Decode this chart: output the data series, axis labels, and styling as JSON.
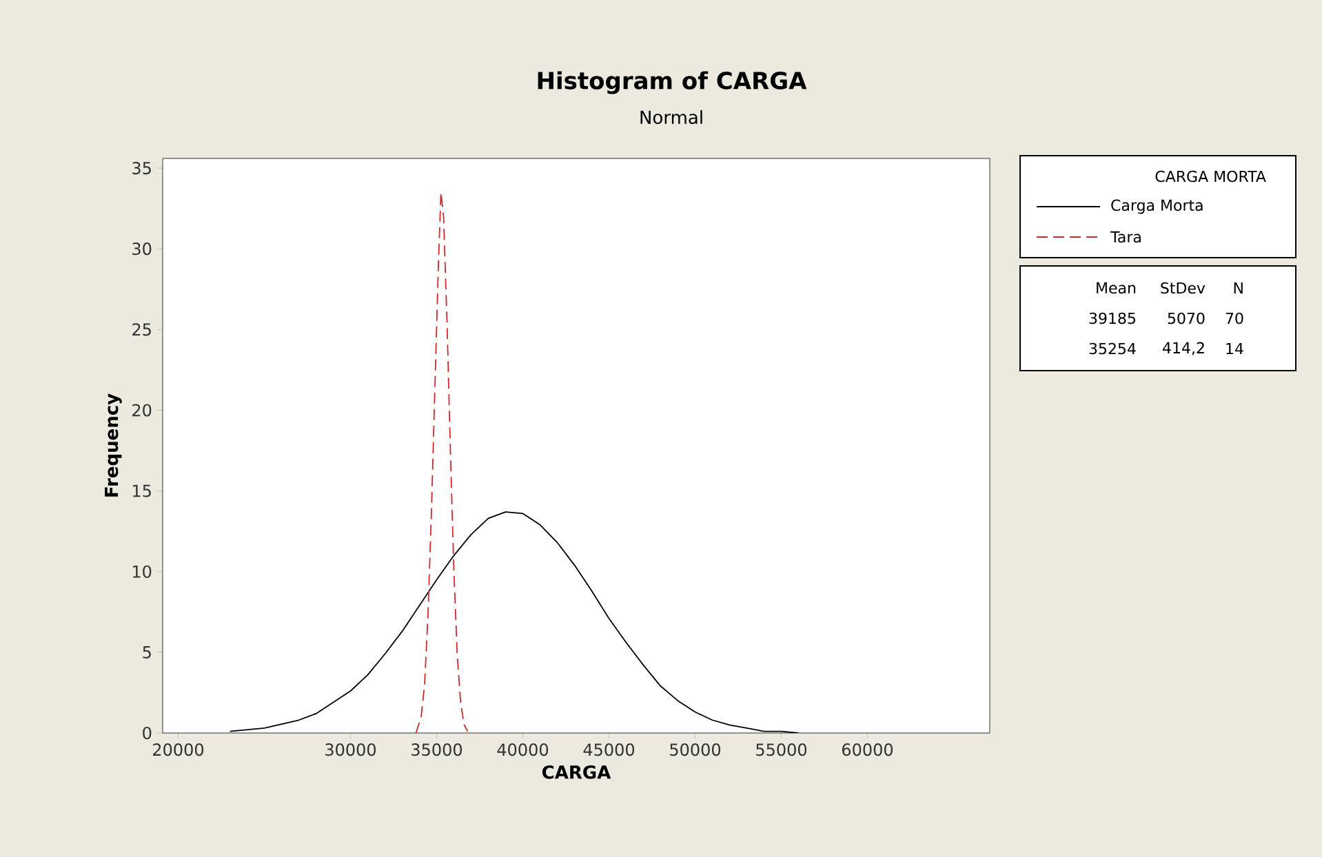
{
  "chart_data": {
    "type": "line",
    "title": "Histogram of CARGA",
    "subtitle": "Normal",
    "xlabel": "CARGA",
    "ylabel": "Frequency",
    "legend_title": "CARGA MORTA",
    "xlim": [
      19100,
      67100
    ],
    "ylim": [
      0,
      35.6
    ],
    "xticks": [
      20000,
      30000,
      35000,
      40000,
      45000,
      50000,
      55000,
      60000
    ],
    "yticks": [
      0,
      5,
      10,
      15,
      20,
      25,
      30,
      35
    ],
    "legend": "right",
    "marker": "none",
    "series": [
      {
        "name": "Carga Morta",
        "color": "#000000",
        "line_style": "solid",
        "x": [
          23000,
          25000,
          27000,
          28000,
          30000,
          31000,
          32000,
          33000,
          34000,
          35000,
          36000,
          37000,
          38000,
          39000,
          40000,
          41000,
          42000,
          43000,
          44000,
          45000,
          46000,
          47000,
          48000,
          49000,
          50000,
          51000,
          52000,
          53000,
          54000,
          55000,
          56000
        ],
        "values": [
          0.1,
          0.3,
          0.8,
          1.2,
          2.6,
          3.6,
          4.9,
          6.3,
          7.9,
          9.5,
          11.0,
          12.3,
          13.3,
          13.7,
          13.6,
          12.9,
          11.8,
          10.4,
          8.8,
          7.1,
          5.6,
          4.2,
          2.9,
          2.0,
          1.3,
          0.8,
          0.5,
          0.3,
          0.1,
          0.1,
          0.0
        ]
      },
      {
        "name": "Tara",
        "color": "#d62728",
        "line_style": "dashed",
        "x": [
          33800,
          34100,
          34300,
          34500,
          34700,
          34900,
          35100,
          35250,
          35400,
          35600,
          35800,
          36000,
          36200,
          36400,
          36600,
          36800
        ],
        "values": [
          0,
          1.0,
          3.0,
          7.4,
          13.8,
          21.5,
          29.0,
          33.5,
          32.0,
          25.5,
          17.4,
          10.0,
          4.7,
          1.8,
          0.5,
          0.1
        ]
      }
    ],
    "annotations": [
      "Mean",
      "StDev",
      "N",
      "39185",
      "5070",
      "70",
      "35254",
      "414,2",
      "14"
    ]
  }
}
